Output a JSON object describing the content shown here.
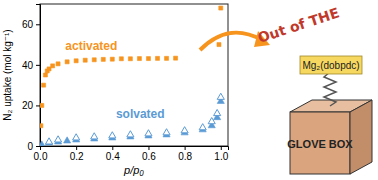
{
  "chart_data": {
    "type": "scatter",
    "x_label": "p/p₀",
    "y_label": "N₂ uptake (mol kg⁻¹)",
    "xlim": [
      0,
      1.04
    ],
    "ylim": [
      0,
      70
    ],
    "xticks": [
      {
        "value": 0,
        "label": "0.0"
      },
      0.2,
      0.4,
      0.6,
      0.8,
      {
        "value": 1,
        "label": "1.0"
      }
    ],
    "yticks": [
      0,
      20,
      40,
      60
    ],
    "grid": false,
    "series": [
      {
        "name": "activated",
        "color": "#f7941d",
        "marker": "square",
        "x": [
          0.005,
          0.01,
          0.02,
          0.03,
          0.04,
          0.05,
          0.07,
          0.1,
          0.15,
          0.2,
          0.25,
          0.3,
          0.35,
          0.4,
          0.45,
          0.5,
          0.55,
          0.6,
          0.65,
          0.7,
          0.75,
          0.99,
          1.0
        ],
        "values": [
          10,
          20,
          30,
          35,
          37,
          38,
          39.5,
          40.5,
          41.5,
          42,
          42.3,
          42.5,
          42.7,
          42.8,
          43,
          43,
          43.1,
          43.1,
          43.2,
          43.2,
          43.3,
          50,
          68
        ]
      },
      {
        "name": "solvated",
        "color": "#5b9bd5",
        "marker": "triangle",
        "x": [
          0.01,
          0.05,
          0.1,
          0.15,
          0.2,
          0.3,
          0.4,
          0.5,
          0.6,
          0.7,
          0.8,
          0.9,
          0.95,
          0.98,
          1.0
        ],
        "values": [
          0.5,
          1.5,
          2,
          2.5,
          3,
          3.5,
          4,
          4.5,
          5,
          5.5,
          6.5,
          8,
          10,
          14,
          22
        ]
      },
      {
        "color": "#5b9bd5",
        "marker": "triangle-open",
        "x": [
          1.0,
          0.98,
          0.95,
          0.9,
          0.8,
          0.7,
          0.6,
          0.5,
          0.4,
          0.3,
          0.2,
          0.1,
          0.05
        ],
        "values": [
          24,
          16,
          12,
          9,
          7.5,
          6.5,
          6,
          5.5,
          5,
          4.5,
          4,
          3,
          2
        ]
      }
    ],
    "annotations": [
      "Out of THE",
      "Mg₂(dobpdc)",
      "GLOVE BOX"
    ]
  }
}
